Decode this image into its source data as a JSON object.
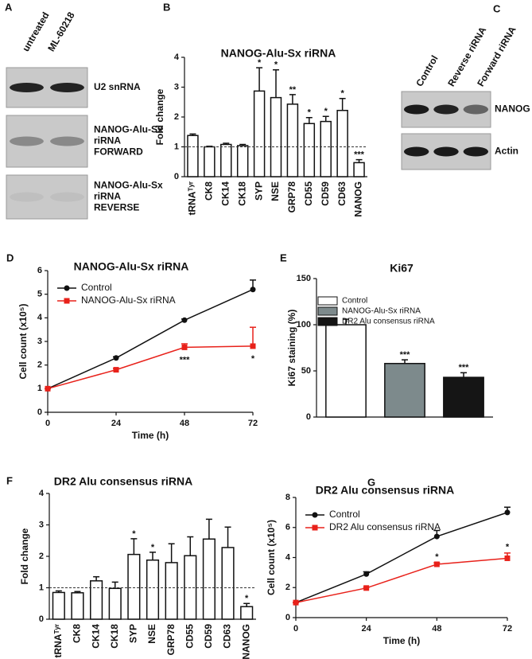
{
  "chart_data": [
    {
      "type": "blot",
      "panel": "A",
      "columns": [
        "untreated",
        "ML-60218"
      ],
      "rows": [
        [
          "U2 snRNA"
        ],
        [
          "NANOG-Alu-Sx",
          "riRNA",
          "FORWARD"
        ],
        [
          "NANOG-Alu-Sx",
          "riRNA",
          "REVERSE"
        ]
      ]
    },
    {
      "type": "bar",
      "panel": "B",
      "title": "NANOG-Alu-Sx riRNA",
      "y_label": "Fold change",
      "categories": [
        "tRNAᵀʸʳ",
        "CK8",
        "CK14",
        "CK18",
        "SYP",
        "NSE",
        "GRP78",
        "CD55",
        "CD59",
        "CD63",
        "NANOG"
      ],
      "values": [
        1.38,
        1.0,
        1.08,
        1.04,
        2.87,
        2.65,
        2.43,
        1.78,
        1.85,
        2.22,
        0.47
      ],
      "errors": [
        0.05,
        0.02,
        0.04,
        0.04,
        0.78,
        0.93,
        0.32,
        0.2,
        0.17,
        0.4,
        0.1
      ],
      "annotations": [
        null,
        null,
        null,
        null,
        "*",
        "*",
        "**",
        "*",
        "*",
        "*",
        "***"
      ],
      "color": "#ffffff",
      "refline": 1,
      "ylim": [
        0,
        4
      ],
      "yticks": [
        0,
        1,
        2,
        3,
        4
      ]
    },
    {
      "type": "blot",
      "panel": "C",
      "columns": [
        "Control",
        "Reverse riRNA",
        "Forward riRNA"
      ],
      "rows": [
        [
          "NANOG"
        ],
        [
          "Actin"
        ]
      ]
    },
    {
      "type": "line",
      "panel": "D",
      "title": "NANOG-Alu-Sx riRNA",
      "x_label": "Time (h)",
      "y_label": "Cell count (x10⁵)",
      "x": [
        0,
        24,
        48,
        72
      ],
      "xlim": [
        0,
        72
      ],
      "xticks": [
        0,
        24,
        48,
        72
      ],
      "ylim": [
        0,
        6
      ],
      "yticks": [
        0,
        1,
        2,
        3,
        4,
        5,
        6
      ],
      "legend": "upper left",
      "series": [
        {
          "name": "Control",
          "color": "#111111",
          "marker": "circle",
          "values": [
            1,
            2.3,
            3.9,
            5.2
          ],
          "errors": [
            0,
            0.05,
            0.05,
            0.4
          ]
        },
        {
          "name": "NANOG-Alu-Sx riRNA",
          "color": "#e8211a",
          "marker": "square",
          "values": [
            1,
            1.8,
            2.75,
            2.8
          ],
          "errors": [
            0,
            0.05,
            0.15,
            0.8
          ]
        }
      ],
      "annotations": [
        null,
        null,
        "***",
        "*"
      ]
    },
    {
      "type": "bar",
      "panel": "E",
      "title": "Ki67",
      "y_label": "Ki67 staining (%)",
      "categories": [
        "Control",
        "NANOG-Alu-Sx riRNA",
        "DR2 Alu consensus riRNA"
      ],
      "values": [
        100,
        58,
        43
      ],
      "errors": [
        6,
        4,
        5
      ],
      "colors": [
        "#ffffff",
        "#7d8a8c",
        "#151515"
      ],
      "annotations": [
        null,
        "***",
        "***"
      ],
      "legend": "upper right",
      "ylim": [
        0,
        150
      ],
      "yticks": [
        0,
        50,
        100,
        150
      ]
    },
    {
      "type": "bar",
      "panel": "F",
      "title": "DR2 Alu consensus riRNA",
      "y_label": "Fold change",
      "categories": [
        "tRNAᵀʸʳ",
        "CK8",
        "CK14",
        "CK18",
        "SYP",
        "NSE",
        "GRP78",
        "CD55",
        "CD59",
        "CD63",
        "NANOG"
      ],
      "values": [
        0.85,
        0.84,
        1.22,
        0.98,
        2.06,
        1.88,
        1.8,
        2.02,
        2.55,
        2.28,
        0.4
      ],
      "errors": [
        0.05,
        0.04,
        0.13,
        0.2,
        0.5,
        0.25,
        0.6,
        0.6,
        0.63,
        0.65,
        0.1
      ],
      "annotations": [
        null,
        null,
        null,
        null,
        "*",
        "*",
        null,
        null,
        null,
        null,
        "*"
      ],
      "color": "#ffffff",
      "refline": 1,
      "ylim": [
        0,
        4
      ],
      "yticks": [
        0,
        1,
        2,
        3,
        4
      ]
    },
    {
      "type": "line",
      "panel": "G",
      "title": "DR2 Alu consensus riRNA",
      "x_label": "Time (h)",
      "y_label": "Cell count (x10⁵)",
      "x": [
        0,
        24,
        48,
        72
      ],
      "xlim": [
        0,
        72
      ],
      "xticks": [
        0,
        24,
        48,
        72
      ],
      "ylim": [
        0,
        8
      ],
      "yticks": [
        0,
        2,
        4,
        6,
        8
      ],
      "legend": "upper left",
      "series": [
        {
          "name": "Control",
          "color": "#111111",
          "marker": "circle",
          "values": [
            1,
            2.9,
            5.4,
            7.0
          ],
          "errors": [
            0,
            0.15,
            0.4,
            0.35
          ]
        },
        {
          "name": "DR2 Alu consensus riRNA",
          "color": "#e8211a",
          "marker": "square",
          "values": [
            1,
            1.97,
            3.55,
            3.95
          ],
          "errors": [
            0,
            0.05,
            0.1,
            0.35
          ]
        }
      ],
      "annotations": [
        null,
        null,
        "*",
        "*"
      ]
    }
  ]
}
